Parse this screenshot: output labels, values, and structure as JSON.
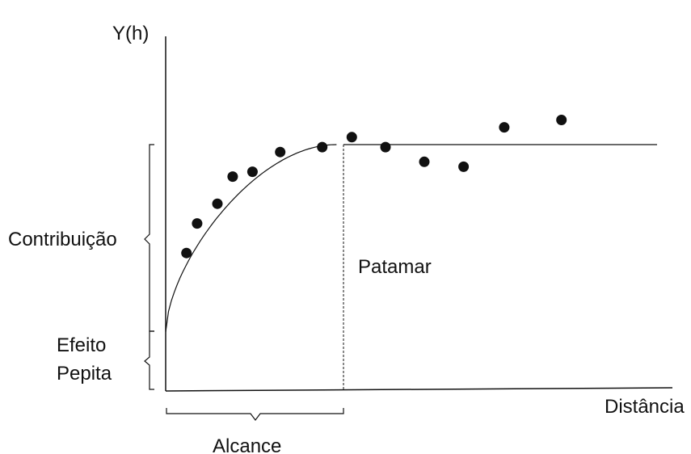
{
  "labels": {
    "y_axis": "Y(h)",
    "x_axis": "Distância",
    "contribution": "Contribuição",
    "nugget_line1": "Efeito",
    "nugget_line2": "Pepita",
    "sill": "Patamar",
    "range": "Alcance"
  },
  "colors": {
    "ink": "#111111",
    "background": "#ffffff"
  },
  "chart_data": {
    "type": "scatter",
    "description_units": "relative distance / semivariance (unlabeled axes)",
    "nugget": 0.24,
    "sill": 1.0,
    "range": 0.37,
    "x_max": 1.05,
    "y_max": 1.5,
    "model_curve": "spherical-like rise to sill at range, then flat",
    "points": [
      {
        "x": 0.045,
        "y": 0.56
      },
      {
        "x": 0.068,
        "y": 0.68
      },
      {
        "x": 0.112,
        "y": 0.76
      },
      {
        "x": 0.145,
        "y": 0.87
      },
      {
        "x": 0.188,
        "y": 0.89
      },
      {
        "x": 0.248,
        "y": 0.97
      },
      {
        "x": 0.339,
        "y": 0.99
      },
      {
        "x": 0.403,
        "y": 1.03
      },
      {
        "x": 0.476,
        "y": 0.99
      },
      {
        "x": 0.56,
        "y": 0.93
      },
      {
        "x": 0.645,
        "y": 0.91
      },
      {
        "x": 0.733,
        "y": 1.07
      },
      {
        "x": 0.857,
        "y": 1.1
      }
    ]
  }
}
